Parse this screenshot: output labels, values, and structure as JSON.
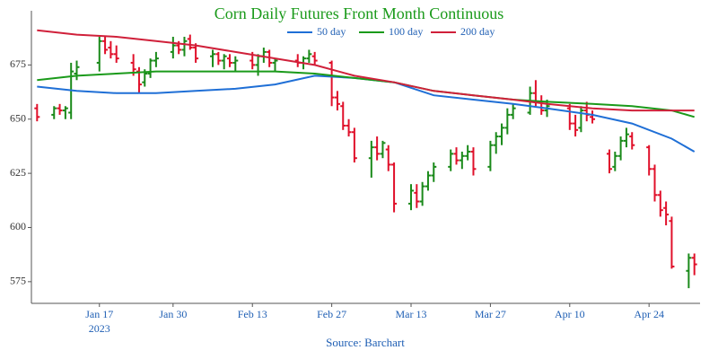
{
  "chart_data": {
    "type": "ohlc",
    "title": "Corn Daily Futures Front Month Continuous",
    "source": "Source: Barchart",
    "x": [
      "2023-01-06",
      "2023-01-09",
      "2023-01-10",
      "2023-01-11",
      "2023-01-12",
      "2023-01-13",
      "2023-01-17",
      "2023-01-18",
      "2023-01-19",
      "2023-01-20",
      "2023-01-23",
      "2023-01-24",
      "2023-01-25",
      "2023-01-26",
      "2023-01-27",
      "2023-01-30",
      "2023-01-31",
      "2023-02-01",
      "2023-02-02",
      "2023-02-03",
      "2023-02-06",
      "2023-02-07",
      "2023-02-08",
      "2023-02-09",
      "2023-02-10",
      "2023-02-13",
      "2023-02-14",
      "2023-02-15",
      "2023-02-16",
      "2023-02-17",
      "2023-02-21",
      "2023-02-22",
      "2023-02-23",
      "2023-02-24",
      "2023-02-27",
      "2023-02-28",
      "2023-03-01",
      "2023-03-02",
      "2023-03-03",
      "2023-03-06",
      "2023-03-07",
      "2023-03-08",
      "2023-03-09",
      "2023-03-10",
      "2023-03-13",
      "2023-03-14",
      "2023-03-15",
      "2023-03-16",
      "2023-03-17",
      "2023-03-20",
      "2023-03-21",
      "2023-03-22",
      "2023-03-23",
      "2023-03-24",
      "2023-03-27",
      "2023-03-28",
      "2023-03-29",
      "2023-03-30",
      "2023-03-31",
      "2023-04-03",
      "2023-04-04",
      "2023-04-05",
      "2023-04-06",
      "2023-04-10",
      "2023-04-11",
      "2023-04-12",
      "2023-04-13",
      "2023-04-14",
      "2023-04-17",
      "2023-04-18",
      "2023-04-19",
      "2023-04-20",
      "2023-04-21",
      "2023-04-24",
      "2023-04-25",
      "2023-04-26",
      "2023-04-27",
      "2023-04-28",
      "2023-05-01",
      "2023-05-02"
    ],
    "open": [
      655,
      652,
      655,
      654,
      653,
      671,
      676,
      686,
      683,
      680,
      676,
      672,
      667,
      671,
      677,
      681,
      684,
      682,
      687,
      683,
      679,
      680,
      677,
      678,
      676,
      677,
      675,
      679,
      681,
      676,
      677,
      676,
      678,
      679,
      676,
      660,
      656,
      647,
      644,
      632,
      637,
      634,
      636,
      629,
      611,
      616,
      612,
      619,
      624,
      628,
      634,
      631,
      633,
      635,
      628,
      638,
      642,
      646,
      652,
      653,
      662,
      658,
      654,
      655,
      648,
      646,
      654,
      651,
      634,
      628,
      633,
      640,
      642,
      637,
      627,
      615,
      609,
      603,
      580,
      586
    ],
    "high": [
      657,
      656,
      657,
      656,
      676,
      677,
      688,
      688,
      686,
      684,
      680,
      674,
      673,
      678,
      681,
      688,
      686,
      688,
      689,
      685,
      682,
      681,
      680,
      680,
      679,
      681,
      680,
      683,
      682,
      678,
      680,
      679,
      682,
      681,
      677,
      663,
      658,
      650,
      646,
      640,
      642,
      640,
      638,
      630,
      620,
      620,
      621,
      626,
      630,
      636,
      637,
      635,
      638,
      637,
      640,
      644,
      648,
      655,
      657,
      665,
      668,
      661,
      659,
      657,
      652,
      656,
      658,
      654,
      636,
      635,
      642,
      646,
      644,
      638,
      629,
      617,
      612,
      605,
      588,
      588
    ],
    "low": [
      649,
      650,
      652,
      650,
      650,
      668,
      672,
      680,
      678,
      676,
      670,
      662,
      665,
      669,
      674,
      678,
      680,
      679,
      682,
      676,
      674,
      675,
      673,
      674,
      672,
      673,
      670,
      676,
      674,
      672,
      674,
      673,
      676,
      675,
      656,
      654,
      645,
      642,
      630,
      623,
      631,
      632,
      626,
      607,
      608,
      609,
      610,
      617,
      621,
      626,
      629,
      627,
      631,
      624,
      626,
      634,
      638,
      643,
      650,
      652,
      656,
      652,
      651,
      645,
      642,
      644,
      649,
      648,
      625,
      626,
      631,
      637,
      636,
      624,
      612,
      605,
      601,
      581,
      572,
      578
    ],
    "close": [
      651,
      655,
      654,
      655,
      672,
      674,
      686,
      682,
      680,
      678,
      673,
      666,
      671,
      677,
      678,
      684,
      682,
      686,
      683,
      678,
      680,
      677,
      679,
      676,
      677,
      675,
      679,
      681,
      676,
      677,
      676,
      678,
      680,
      677,
      660,
      657,
      647,
      644,
      632,
      637,
      634,
      639,
      629,
      611,
      617,
      612,
      619,
      624,
      628,
      634,
      631,
      633,
      635,
      627,
      638,
      642,
      646,
      652,
      655,
      662,
      658,
      654,
      656,
      648,
      645,
      654,
      652,
      650,
      627,
      633,
      640,
      643,
      638,
      627,
      615,
      608,
      606,
      582,
      586,
      583
    ],
    "up_color": "#1a8a1a",
    "down_color": "#e0102a",
    "series": [
      {
        "name": "50 day",
        "color": "#1f6fd6",
        "x": [
          "2023-01-06",
          "2023-01-13",
          "2023-01-20",
          "2023-01-27",
          "2023-02-03",
          "2023-02-10",
          "2023-02-17",
          "2023-02-24",
          "2023-03-03",
          "2023-03-10",
          "2023-03-17",
          "2023-03-24",
          "2023-03-31",
          "2023-04-06",
          "2023-04-14",
          "2023-04-21",
          "2023-04-28",
          "2023-05-02"
        ],
        "values": [
          665,
          663,
          662,
          662,
          663,
          664,
          666,
          670,
          669,
          667,
          661,
          659,
          657,
          655,
          652,
          648,
          641,
          635
        ]
      },
      {
        "name": "100 day",
        "color": "#1a9a1a",
        "x": [
          "2023-01-06",
          "2023-01-13",
          "2023-01-20",
          "2023-01-27",
          "2023-02-03",
          "2023-02-10",
          "2023-02-17",
          "2023-02-24",
          "2023-03-03",
          "2023-03-10",
          "2023-03-17",
          "2023-03-24",
          "2023-03-31",
          "2023-04-06",
          "2023-04-14",
          "2023-04-21",
          "2023-04-28",
          "2023-05-02"
        ],
        "values": [
          668,
          670,
          671,
          672,
          672,
          672,
          672,
          671,
          669,
          667,
          663,
          661,
          659,
          658,
          657,
          656,
          654,
          651
        ]
      },
      {
        "name": "200 day",
        "color": "#d0203a",
        "x": [
          "2023-01-06",
          "2023-01-13",
          "2023-01-20",
          "2023-01-27",
          "2023-02-03",
          "2023-02-10",
          "2023-02-17",
          "2023-02-24",
          "2023-03-03",
          "2023-03-10",
          "2023-03-17",
          "2023-03-24",
          "2023-03-31",
          "2023-04-06",
          "2023-04-14",
          "2023-04-21",
          "2023-04-28",
          "2023-05-02"
        ],
        "values": [
          691,
          689,
          688,
          686,
          684,
          681,
          678,
          675,
          670,
          667,
          663,
          661,
          659,
          657,
          655,
          654,
          654,
          654
        ]
      }
    ],
    "xlim": [
      "2023-01-05",
      "2023-05-03"
    ],
    "xticks": [
      {
        "value": "2023-01-17",
        "label": "Jan 17"
      },
      {
        "value": "2023-01-30",
        "label": "Jan 30"
      },
      {
        "value": "2023-02-13",
        "label": "Feb 13"
      },
      {
        "value": "2023-02-27",
        "label": "Feb 27"
      },
      {
        "value": "2023-03-13",
        "label": "Mar 13"
      },
      {
        "value": "2023-03-27",
        "label": "Mar 27"
      },
      {
        "value": "2023-04-10",
        "label": "Apr 10"
      },
      {
        "value": "2023-04-24",
        "label": "Apr 24"
      }
    ],
    "xtick_year": "2023",
    "ylim": [
      565,
      700
    ],
    "yticks": [
      575,
      600,
      625,
      650,
      675
    ]
  }
}
